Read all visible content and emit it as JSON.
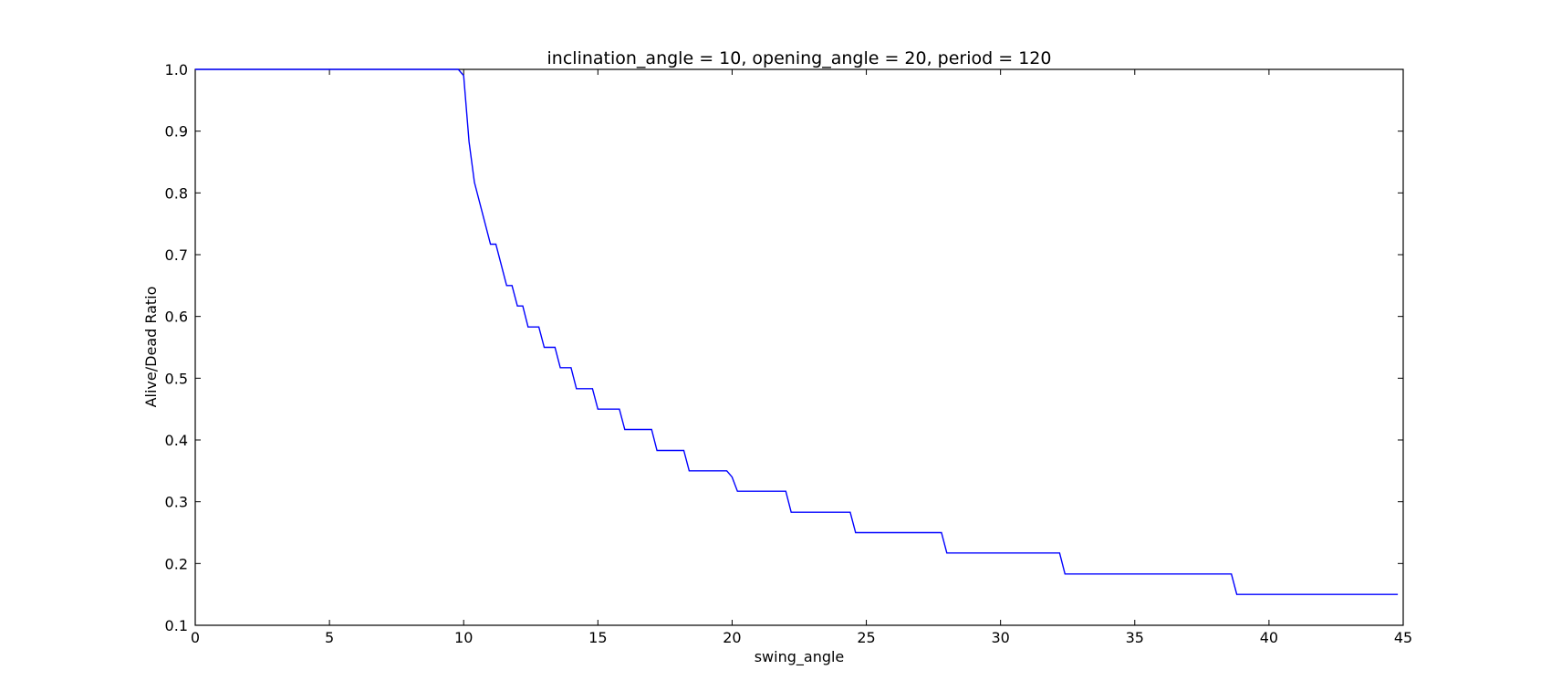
{
  "chart_data": {
    "type": "line",
    "title": "inclination_angle = 10, opening_angle = 20, period = 120",
    "xlabel": "swing_angle",
    "ylabel": "Alive/Dead Ratio",
    "xlim": [
      0,
      45
    ],
    "ylim": [
      0.1,
      1.0
    ],
    "xticks": [
      "0",
      "5",
      "10",
      "15",
      "20",
      "25",
      "30",
      "35",
      "40",
      "45"
    ],
    "yticks": [
      "0.1",
      "0.2",
      "0.3",
      "0.4",
      "0.5",
      "0.6",
      "0.7",
      "0.8",
      "0.9",
      "1.0"
    ],
    "grid": false,
    "series": [
      {
        "color": "#0000ff",
        "x": [
          0,
          9.8,
          10.0,
          10.2,
          10.4,
          11.0,
          11.2,
          11.6,
          11.8,
          12.0,
          12.2,
          12.4,
          12.8,
          13.0,
          13.4,
          13.6,
          14.0,
          14.2,
          14.8,
          15.0,
          15.8,
          16.0,
          17.0,
          17.2,
          18.2,
          18.4,
          19.8,
          20.0,
          20.2,
          22.0,
          22.2,
          24.4,
          24.6,
          27.8,
          28.0,
          32.2,
          32.4,
          38.6,
          38.8,
          44.8
        ],
        "y": [
          1.0,
          1.0,
          0.99,
          0.883,
          0.817,
          0.717,
          0.717,
          0.65,
          0.65,
          0.617,
          0.617,
          0.583,
          0.583,
          0.55,
          0.55,
          0.517,
          0.517,
          0.483,
          0.483,
          0.45,
          0.45,
          0.417,
          0.417,
          0.383,
          0.383,
          0.35,
          0.35,
          0.34,
          0.317,
          0.317,
          0.283,
          0.283,
          0.25,
          0.25,
          0.217,
          0.217,
          0.183,
          0.183,
          0.15,
          0.15
        ]
      }
    ]
  }
}
